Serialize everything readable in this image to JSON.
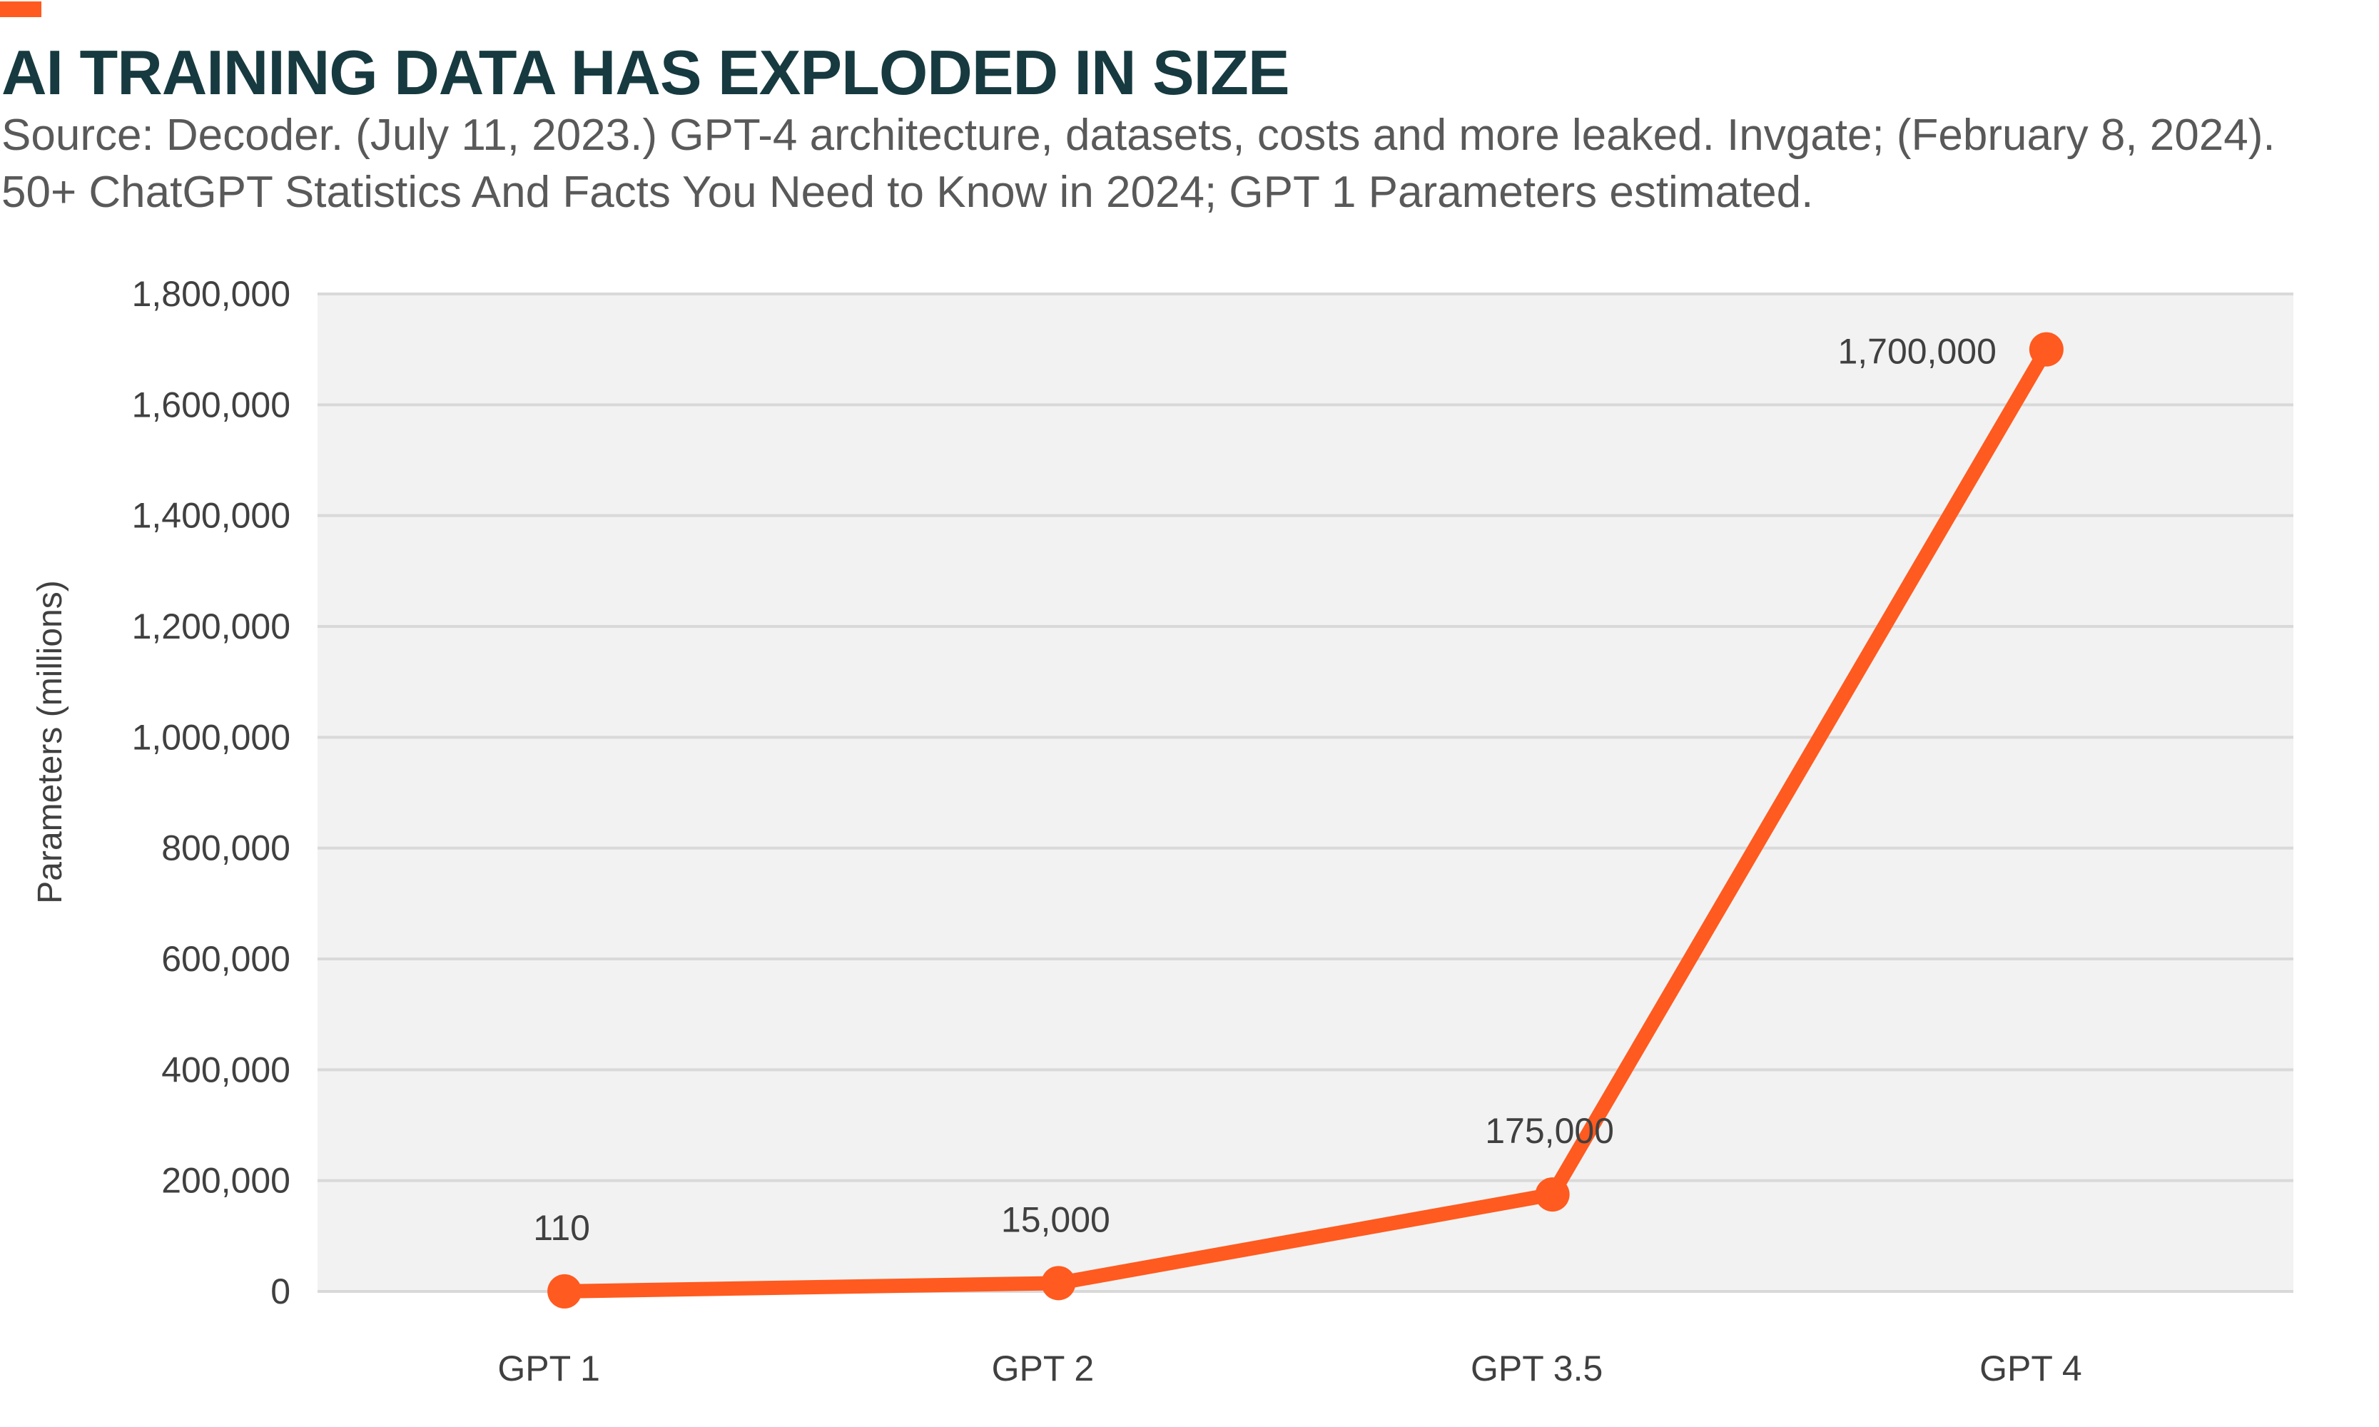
{
  "header": {
    "title": "AI TRAINING DATA HAS EXPLODED IN SIZE",
    "subtitle_lines": [
      "Source: Decoder. (July 11, 2023.) GPT-4 architecture, datasets, costs and more leaked. Invgate; (February 8, 2024).",
      "50+ ChatGPT Statistics And Facts You Need to Know in 2024; GPT 1 Parameters estimated."
    ]
  },
  "colors": {
    "accent": "#FF5A1F",
    "title": "#163A3F",
    "plot_background": "#F2F2F2",
    "gridline": "#D9D9D9",
    "text": "#404040"
  },
  "chart_data": {
    "type": "line",
    "title": "AI TRAINING DATA HAS EXPLODED IN SIZE",
    "xlabel": "",
    "ylabel": "Parameters (millions)",
    "categories": [
      "GPT 1",
      "GPT 2",
      "GPT 3.5",
      "GPT 4"
    ],
    "series": [
      {
        "values": [
          110,
          15000,
          175000,
          1700000
        ],
        "data_labels": [
          "110",
          "15,000",
          "175,000",
          "1,700,000"
        ],
        "color": "#FF5A1F"
      }
    ],
    "ylim": [
      0,
      1800000
    ],
    "y_ticks": [
      0,
      200000,
      400000,
      600000,
      800000,
      1000000,
      1200000,
      1400000,
      1600000,
      1800000
    ],
    "y_tick_labels": [
      "0",
      "200,000",
      "400,000",
      "600,000",
      "800,000",
      "1,000,000",
      "1,200,000",
      "1,400,000",
      "1,600,000",
      "1,800,000"
    ],
    "grid": true,
    "legend": "none"
  }
}
